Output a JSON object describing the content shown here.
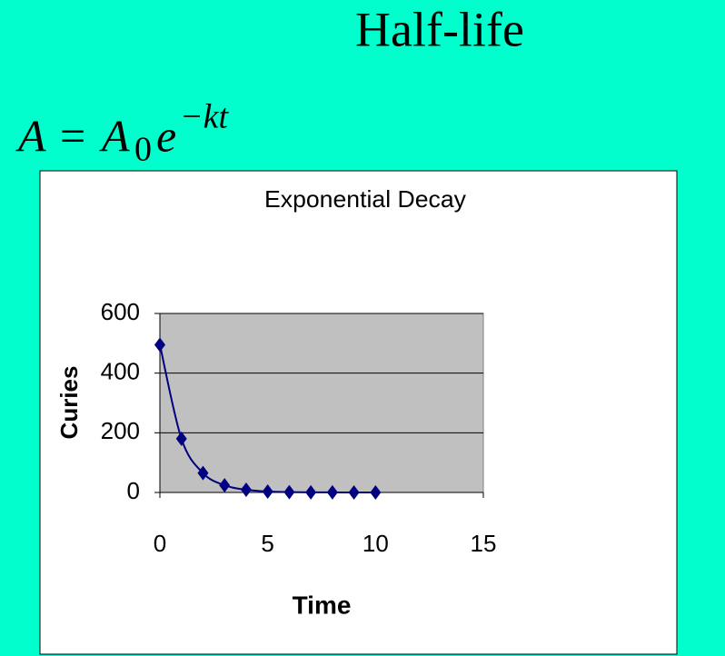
{
  "slide": {
    "title": "Half-life",
    "formula": {
      "lhs": "A",
      "equals": "=",
      "base": "A",
      "subscript": "0",
      "exp_base": "e",
      "exponent": "−kt"
    }
  },
  "chart_data": {
    "type": "scatter",
    "title": "Exponential Decay",
    "x_label": "Time",
    "y_label": "Curies",
    "x": [
      0,
      1,
      2,
      3,
      4,
      5,
      6,
      7,
      8,
      9,
      10
    ],
    "series": [
      {
        "name": "Curies",
        "color": "#000080",
        "values": [
          495,
          180,
          65,
          24,
          9,
          3,
          1.2,
          0.4,
          0.2,
          0.06,
          0.02
        ]
      }
    ],
    "xlim": [
      0,
      15
    ],
    "xticks": [
      0,
      5,
      10,
      15
    ],
    "ylim": [
      0,
      600
    ],
    "yticks": [
      0,
      200,
      400,
      600
    ],
    "grid": true,
    "smooth": true,
    "plot_background": "#c0c0c0"
  }
}
